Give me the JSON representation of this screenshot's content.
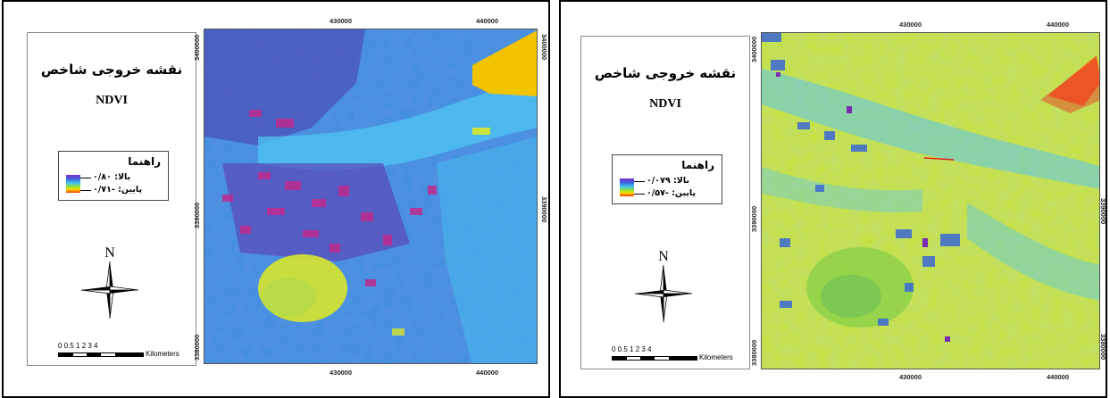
{
  "panels": [
    {
      "title": "نقشه خروجی شاخص",
      "index": "NDVI",
      "legend": {
        "title": "راهنما",
        "high": "بالا: ۰/۸۰",
        "low": "پایین: -۰/۷۱"
      },
      "north": "N",
      "scale": {
        "numbers": "0 0.5 1     2       3      4",
        "unit": "Kilometers"
      },
      "ticks": {
        "top": [
          "430000",
          "440000"
        ],
        "bottom": [
          "430000",
          "440000"
        ],
        "left": [
          "3400000",
          "3390000",
          "3380000"
        ],
        "right": [
          "3400000",
          "3390000"
        ]
      },
      "colors": {
        "base": "#3a8fe0",
        "dark": "#4b4fb8",
        "purple": "#8a2fb0",
        "magenta": "#c0268e",
        "cyan": "#4cc4f0",
        "yellow": "#d8e62a",
        "gold": "#f4c400"
      }
    },
    {
      "title": "نقشه خروجی شاخص",
      "index": "NDVI",
      "legend": {
        "title": "راهنما",
        "high": "بالا: ۰/۰۷۹",
        "low": "پایین: -۰/۵۷"
      },
      "north": "N",
      "scale": {
        "numbers": "0 0.5 1     2       3      4",
        "unit": "Kilometers"
      },
      "ticks": {
        "top": [
          "430000",
          "440000"
        ],
        "bottom": [
          "430000",
          "440000"
        ],
        "left": [
          "3400000",
          "3390000",
          "3380000"
        ],
        "right": [
          "3390000",
          "3380000"
        ]
      },
      "colors": {
        "base": "#c9e23a",
        "green": "#8fd14a",
        "cyan": "#5bc6ee",
        "blue": "#3b6ad6",
        "purple": "#7a2bb0",
        "orange": "#f06a20"
      }
    }
  ]
}
